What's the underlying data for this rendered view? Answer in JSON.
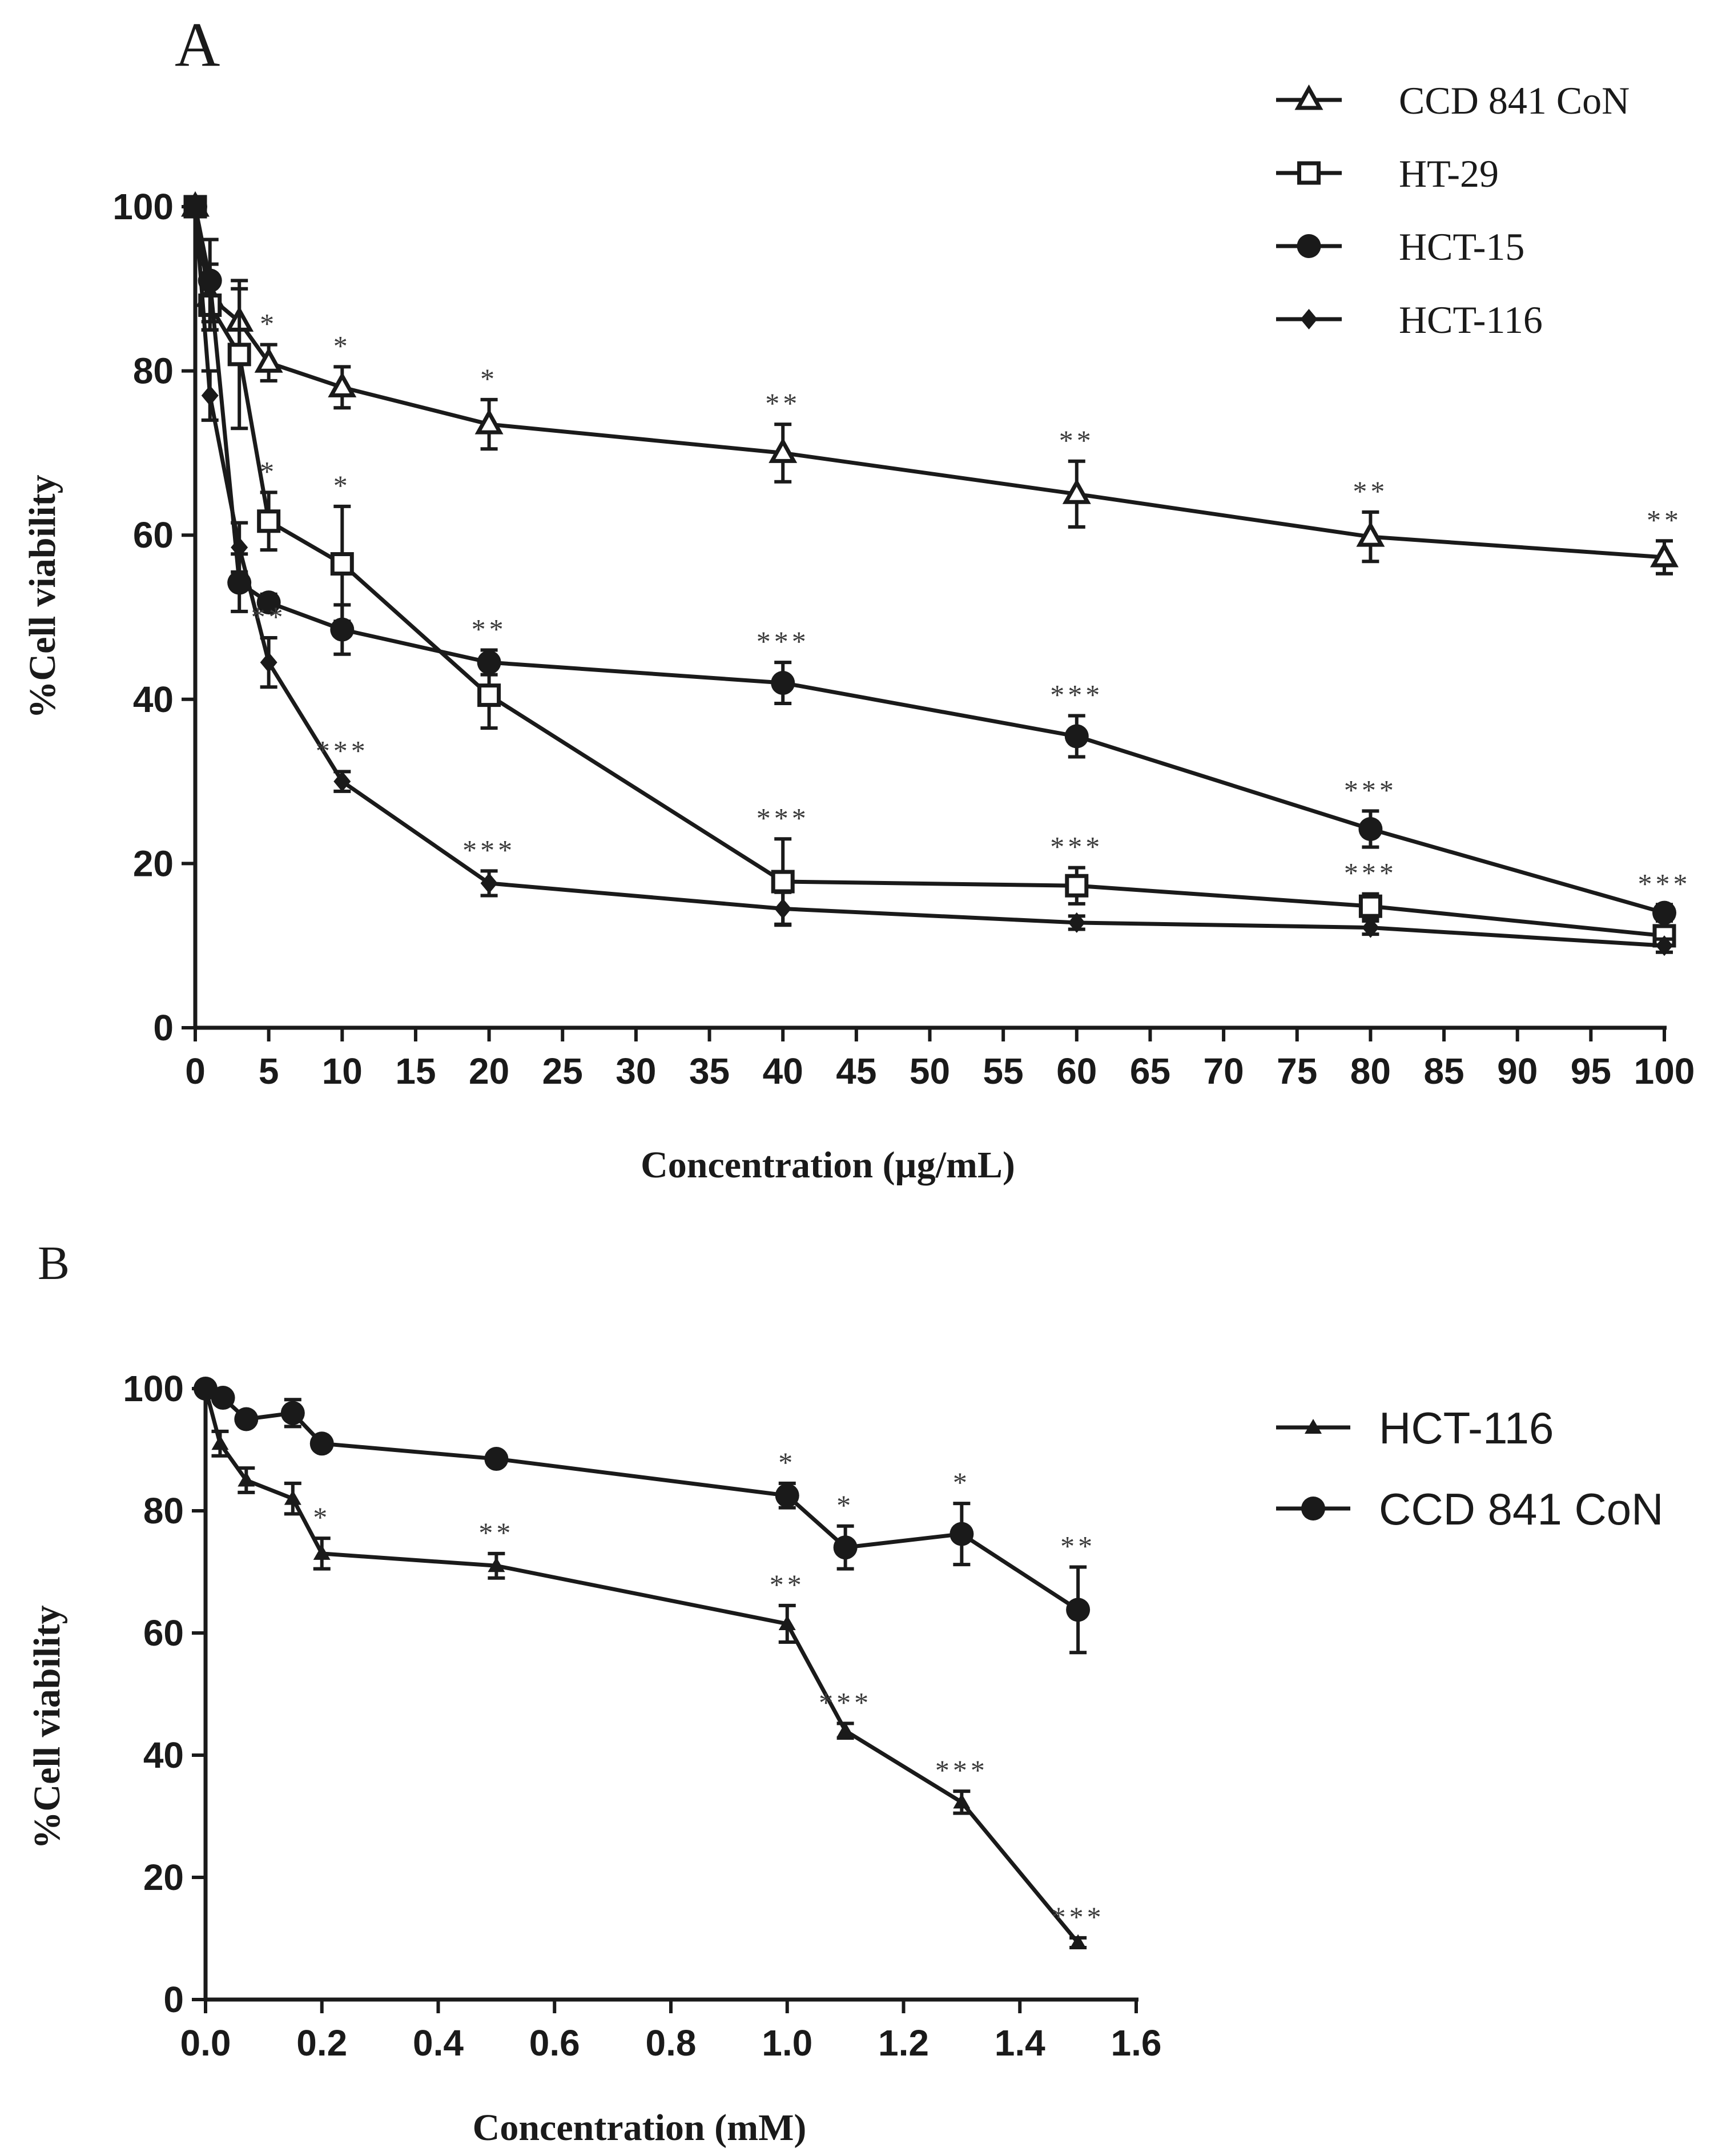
{
  "panels": {
    "a": {
      "label": "A"
    },
    "b": {
      "label": "B"
    }
  },
  "chart_data": [
    {
      "type": "line",
      "panel": "A",
      "xlabel": "Concentration (µg/mL)",
      "ylabel": "%Cell viability",
      "xlim": [
        0,
        100
      ],
      "ylim": [
        0,
        100
      ],
      "xticks": [
        0,
        5,
        10,
        15,
        20,
        25,
        30,
        35,
        40,
        45,
        50,
        55,
        60,
        65,
        70,
        75,
        80,
        85,
        90,
        95,
        100
      ],
      "yticks": [
        0,
        20,
        40,
        60,
        80,
        100
      ],
      "legend_position": "top-right",
      "series": [
        {
          "name": "CCD 841 CoN",
          "marker": "triangle-open",
          "x": [
            0,
            1,
            3,
            5,
            10,
            20,
            40,
            60,
            80,
            100
          ],
          "y": [
            100,
            89,
            86,
            81,
            78,
            73.5,
            70,
            65,
            59.8,
            57.3
          ],
          "err": [
            0,
            4,
            4,
            2.2,
            2.5,
            3,
            3.5,
            4,
            3,
            2
          ],
          "sig": [
            "",
            "",
            "",
            "*",
            "*",
            "*",
            "**",
            "**",
            "**",
            "**"
          ]
        },
        {
          "name": "HT-29",
          "marker": "square-open",
          "x": [
            0,
            1,
            3,
            5,
            10,
            20,
            40,
            60,
            80,
            100
          ],
          "y": [
            100,
            88,
            82,
            61.7,
            56.5,
            40.5,
            17.8,
            17.3,
            14.8,
            11.2
          ],
          "err": [
            0,
            3,
            9,
            3.5,
            7,
            4,
            5.2,
            2.2,
            1.5,
            1
          ],
          "sig": [
            "",
            "",
            "",
            "*",
            "*",
            "",
            "***",
            "***",
            "***",
            ""
          ]
        },
        {
          "name": "HCT-15",
          "marker": "circle-filled",
          "x": [
            0,
            1,
            3,
            5,
            10,
            20,
            40,
            60,
            80,
            100
          ],
          "y": [
            100,
            91,
            54.2,
            51.8,
            48.5,
            44.5,
            42,
            35.5,
            24.2,
            14
          ],
          "err": [
            0,
            5,
            3.5,
            1,
            3,
            1.5,
            2.5,
            2.5,
            2.2,
            1
          ],
          "sig": [
            "",
            "",
            "",
            "",
            "",
            "**",
            "***",
            "***",
            "***",
            "***"
          ]
        },
        {
          "name": "HCT-116",
          "marker": "diamond-filled",
          "x": [
            0,
            1,
            3,
            5,
            10,
            20,
            40,
            60,
            80,
            100
          ],
          "y": [
            100,
            77,
            58.5,
            44.5,
            30,
            17.6,
            14.5,
            12.8,
            12.2,
            10
          ],
          "err": [
            0,
            3,
            3,
            3,
            1.2,
            1.5,
            2,
            0.8,
            0.8,
            0.8
          ],
          "sig": [
            "",
            "",
            "",
            "**",
            "***",
            "***",
            "",
            "",
            "",
            ""
          ]
        }
      ]
    },
    {
      "type": "line",
      "panel": "B",
      "xlabel": "Concentration (mM)",
      "ylabel": "%Cell viability",
      "xlim": [
        0,
        1.6
      ],
      "ylim": [
        0,
        100
      ],
      "xticks": [
        "0.0",
        "0.2",
        "0.4",
        "0.6",
        "0.8",
        "1.0",
        "1.2",
        "1.4",
        "1.6"
      ],
      "yticks": [
        0,
        20,
        40,
        60,
        80,
        100
      ],
      "legend_position": "right",
      "series": [
        {
          "name": "HCT-116",
          "marker": "triangle-filled-small",
          "x": [
            0,
            0.025,
            0.07,
            0.15,
            0.2,
            0.5,
            1.0,
            1.1,
            1.3,
            1.5
          ],
          "y": [
            100,
            91,
            85,
            82,
            73,
            71,
            61.5,
            44,
            32.3,
            9.3
          ],
          "err": [
            0,
            2,
            2,
            2.5,
            2.5,
            2,
            3,
            1.2,
            1.8,
            0.8
          ],
          "sig": [
            "",
            "",
            "",
            "",
            "*",
            "**",
            "**",
            "***",
            "***",
            "***"
          ]
        },
        {
          "name": "CCD 841 CoN",
          "marker": "circle-filled",
          "x": [
            0,
            0.03,
            0.07,
            0.15,
            0.2,
            0.5,
            1.0,
            1.1,
            1.3,
            1.5
          ],
          "y": [
            100,
            98.5,
            95,
            96,
            91,
            88.5,
            82.5,
            74,
            76.2,
            63.8
          ],
          "err": [
            0,
            0.8,
            1,
            2.2,
            1,
            0.8,
            2,
            3.5,
            5,
            7
          ],
          "sig": [
            "",
            "",
            "",
            "",
            "",
            "",
            "*",
            "*",
            "*",
            "**"
          ]
        }
      ]
    }
  ]
}
